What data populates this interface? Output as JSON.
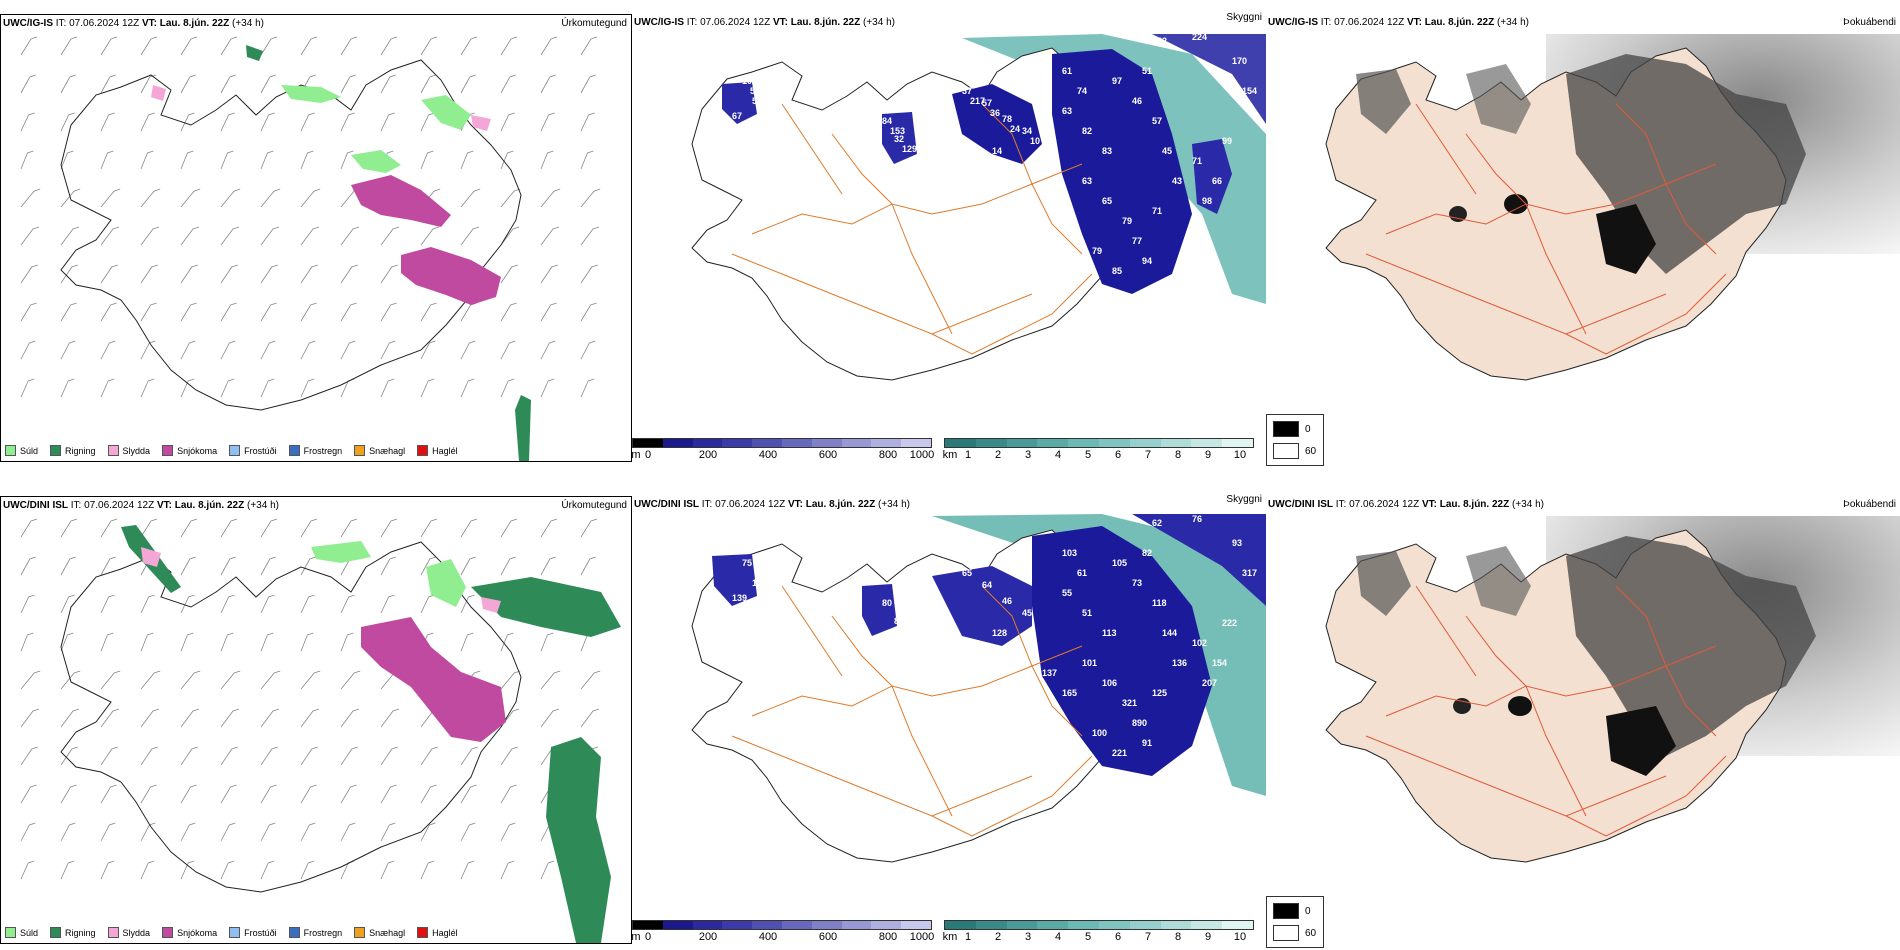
{
  "rows": [
    {
      "model": "UWC/IG-IS",
      "it_label": "IT:",
      "it_value": "07.06.2024 12Z",
      "vt_label": "VT:",
      "vt_value": "Lau. 8.jún. 22Z",
      "lead": "(+34 h)",
      "labels": [
        "102",
        "55",
        "67",
        "84",
        "32",
        "67",
        "37",
        "57",
        "78",
        "34",
        "14",
        "61",
        "74",
        "63",
        "82",
        "83",
        "97",
        "46",
        "51",
        "57",
        "45",
        "43",
        "63",
        "65",
        "79",
        "77",
        "71",
        "94",
        "85",
        "79",
        "56",
        "85",
        "71",
        "66",
        "98",
        "99",
        "182",
        "224",
        "170",
        "154",
        "64",
        "196",
        "59",
        "40",
        "273",
        "153",
        "129",
        "162",
        "217",
        "36",
        "24",
        "10"
      ]
    },
    {
      "model": "UWC/DINI ISL",
      "it_label": "IT:",
      "it_value": "07.06.2024 12Z",
      "vt_label": "VT:",
      "vt_value": "Lau. 8.jún. 22Z",
      "lead": "(+34 h)",
      "labels": [
        "75",
        "162",
        "139",
        "80",
        "80",
        "39",
        "65",
        "64",
        "46",
        "45",
        "128",
        "103",
        "61",
        "55",
        "51",
        "113",
        "105",
        "73",
        "82",
        "118",
        "144",
        "136",
        "101",
        "106",
        "321",
        "890",
        "125",
        "91",
        "221",
        "100",
        "165",
        "137",
        "102",
        "154",
        "207",
        "222",
        "62",
        "76",
        "93",
        "317",
        "183",
        "53"
      ]
    }
  ],
  "panel_titles": {
    "precip": "Úrkomutegund",
    "cloud": "Skyggni",
    "fog": "Þokuábendi"
  },
  "precip_legend": [
    {
      "label": "Súld",
      "color": "#90ee90"
    },
    {
      "label": "Rigning",
      "color": "#2e8b57"
    },
    {
      "label": "Slydda",
      "color": "#f4a6d7"
    },
    {
      "label": "Snjókoma",
      "color": "#c04aa0"
    },
    {
      "label": "Frostúði",
      "color": "#8fbfef"
    },
    {
      "label": "Frostregn",
      "color": "#3a6fbf"
    },
    {
      "label": "Snæhagl",
      "color": "#f0a020"
    },
    {
      "label": "Haglél",
      "color": "#e01010"
    }
  ],
  "cloud_base_scale": {
    "unit": "m",
    "ticks": [
      "0",
      "200",
      "400",
      "600",
      "800",
      "1000"
    ],
    "colors": [
      "#000000",
      "#1a1a8c",
      "#2a2a9c",
      "#3a3aa8",
      "#5050b0",
      "#6868bc",
      "#8080c8",
      "#9898d4",
      "#b0b0e0",
      "#c8c8ec"
    ]
  },
  "visibility_scale": {
    "unit": "km",
    "ticks": [
      "1",
      "2",
      "3",
      "4",
      "5",
      "6",
      "7",
      "8",
      "9",
      "10"
    ],
    "colors": [
      "#2a7a78",
      "#3a8a88",
      "#4a9a98",
      "#5aaaa6",
      "#6cb8b4",
      "#80c4c0",
      "#96d0cc",
      "#aedcd8",
      "#c6e8e4",
      "#e0f4f2"
    ]
  },
  "fog_legend": [
    {
      "label": "0",
      "color": "#000000"
    },
    {
      "label": "60",
      "color": "#ffffff"
    }
  ],
  "colors": {
    "coast": "#111111",
    "roads": "#e07a2a",
    "fog_land": "#f3e0d0",
    "cloud_deep": "#1a1a9a",
    "vis_teal": "#4aa6a0",
    "snow": "#c04aa0",
    "drizzle": "#90ee90",
    "rain": "#2e8b57"
  }
}
